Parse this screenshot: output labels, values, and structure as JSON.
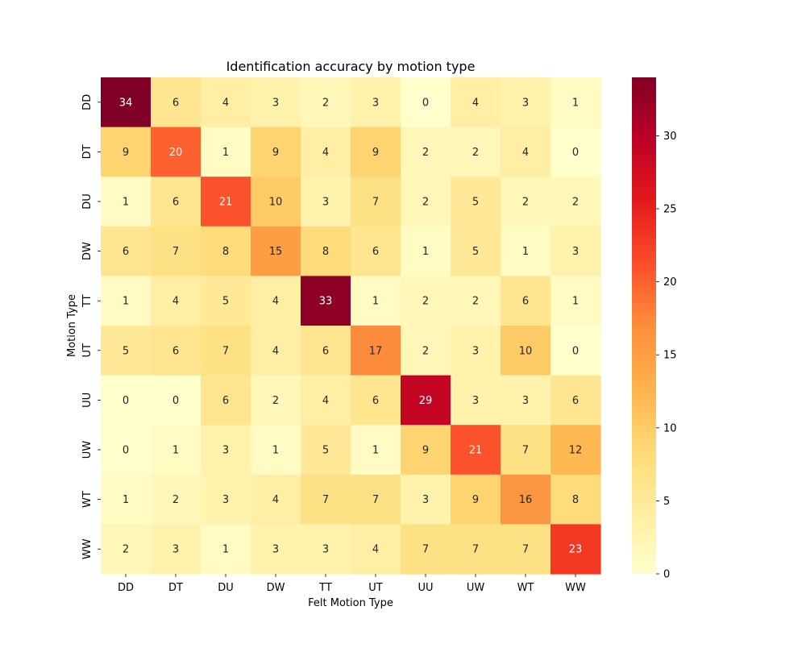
{
  "chart_data": {
    "type": "heatmap",
    "title": "Identification accuracy by motion type",
    "xlabel": "Felt Motion Type",
    "ylabel": "Motion Type",
    "x_categories": [
      "DD",
      "DT",
      "DU",
      "DW",
      "TT",
      "UT",
      "UU",
      "UW",
      "WT",
      "WW"
    ],
    "y_categories": [
      "DD",
      "DT",
      "DU",
      "DW",
      "TT",
      "UT",
      "UU",
      "UW",
      "WT",
      "WW"
    ],
    "values": [
      [
        34,
        6,
        4,
        3,
        2,
        3,
        0,
        4,
        3,
        1
      ],
      [
        9,
        20,
        1,
        9,
        4,
        9,
        2,
        2,
        4,
        0
      ],
      [
        1,
        6,
        21,
        10,
        3,
        7,
        2,
        5,
        2,
        2
      ],
      [
        6,
        7,
        8,
        15,
        8,
        6,
        1,
        5,
        1,
        3
      ],
      [
        1,
        4,
        5,
        4,
        33,
        1,
        2,
        2,
        6,
        1
      ],
      [
        5,
        6,
        7,
        4,
        6,
        17,
        2,
        3,
        10,
        0
      ],
      [
        0,
        0,
        6,
        2,
        4,
        6,
        29,
        3,
        3,
        6
      ],
      [
        0,
        1,
        3,
        1,
        5,
        1,
        9,
        21,
        7,
        12
      ],
      [
        1,
        2,
        3,
        4,
        7,
        7,
        3,
        9,
        16,
        8
      ],
      [
        2,
        3,
        1,
        3,
        3,
        4,
        7,
        7,
        7,
        23
      ]
    ],
    "colormap": "YlOrRd",
    "vmin": 0,
    "vmax": 34,
    "colorbar_ticks": [
      0,
      5,
      10,
      15,
      20,
      25,
      30
    ],
    "annotate": true
  }
}
